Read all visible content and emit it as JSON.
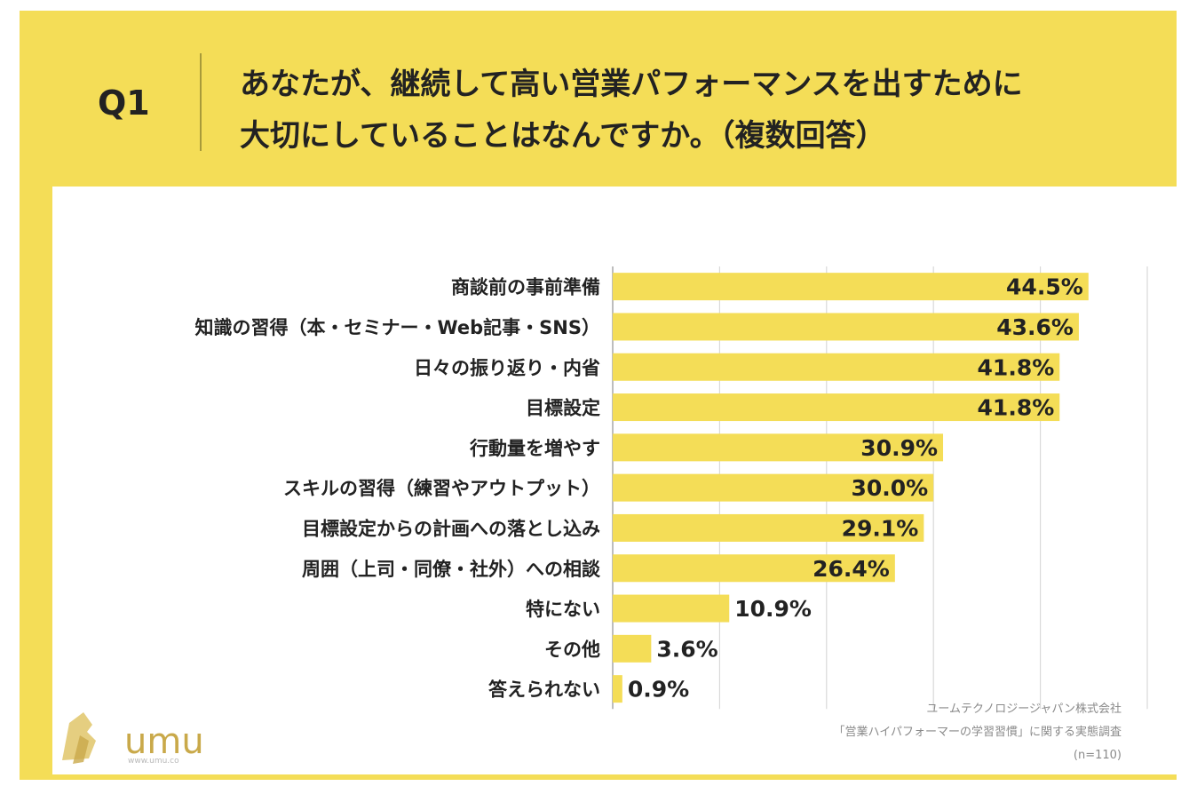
{
  "header": {
    "q_label": "Q1",
    "question_line1": "あなたが、継続して高い営業パフォーマンスを出すために",
    "question_line2": "大切にしていることはなんですか。（複数回答）"
  },
  "colors": {
    "background": "#F4DD57",
    "bar": "#F4DD57",
    "grid": "#d9d9d9",
    "text": "#222222"
  },
  "chart_data": {
    "type": "bar",
    "orientation": "horizontal",
    "categories": [
      "商談前の事前準備",
      "知識の習得（本・セミナー・Web記事・SNS）",
      "日々の振り返り・内省",
      "目標設定",
      "行動量を増やす",
      "スキルの習得（練習やアウトプット）",
      "目標設定からの計画への落とし込み",
      "周囲（上司・同僚・社外）への相談",
      "特にない",
      "その他",
      "答えられない"
    ],
    "values": [
      44.5,
      43.6,
      41.8,
      41.8,
      30.9,
      30.0,
      29.1,
      26.4,
      10.9,
      3.6,
      0.9
    ],
    "labels": [
      "44.5%",
      "43.6%",
      "41.8%",
      "41.8%",
      "30.9%",
      "30.0%",
      "29.1%",
      "26.4%",
      "10.9%",
      "3.6%",
      "0.9%"
    ],
    "xlim": [
      0,
      50
    ],
    "grid": true
  },
  "brand": {
    "logo_text": "umu",
    "logo_url": "www.umu.co"
  },
  "source": {
    "line1": "ユームテクノロジージャパン株式会社",
    "line2": "「営業ハイパフォーマーの学習習慣」に関する実態調査",
    "line3": "(n=110)"
  }
}
